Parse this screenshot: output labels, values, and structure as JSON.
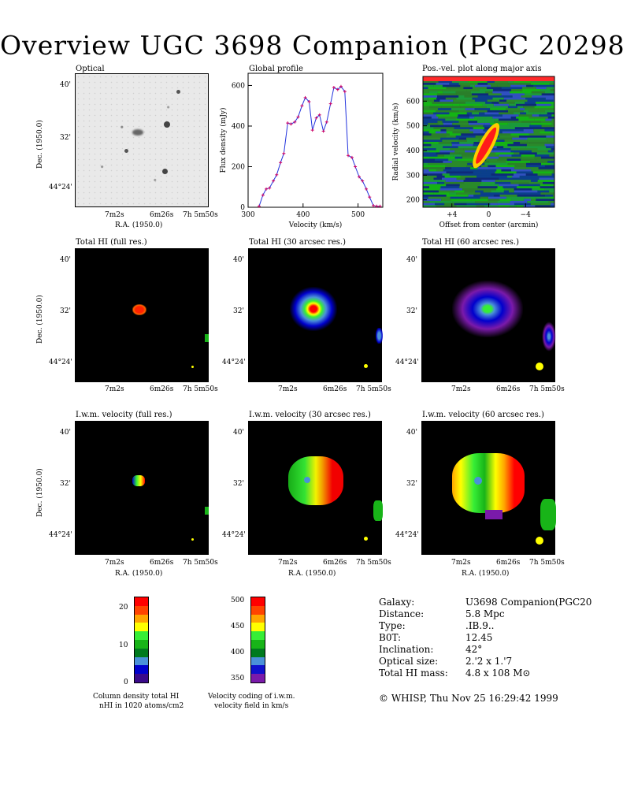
{
  "title": "Overview UGC 3698 Companion (PGC 20298)",
  "panels": {
    "optical": {
      "title": "Optical"
    },
    "global_profile": {
      "title": "Global profile",
      "xlabel": "Velocity (km/s)",
      "ylabel": "Flux density (mJy)"
    },
    "pv": {
      "title": "Pos.-vel. plot along major axis",
      "xlabel": "Offset from center (arcmin)",
      "ylabel": "Radial velocity (km/s)"
    },
    "hi_full": {
      "title": "Total HI (full res.)"
    },
    "hi_30": {
      "title": "Total HI (30 arcsec res.)"
    },
    "hi_60": {
      "title": "Total HI (60 arcsec res.)"
    },
    "vel_full": {
      "title": "I.w.m. velocity (full res.)"
    },
    "vel_30": {
      "title": "I.w.m. velocity (30 arcsec res.)"
    },
    "vel_60": {
      "title": "I.w.m. velocity (60 arcsec res.)"
    }
  },
  "axes": {
    "dec_label": "Dec. (1950.0)",
    "ra_label": "R.A. (1950.0)",
    "dec_ticks": [
      "40'",
      "32'",
      "44°24'"
    ],
    "ra_ticks": [
      "7m2s",
      "6m26s",
      "7h 5m50s"
    ]
  },
  "chart_data": [
    {
      "type": "line",
      "title": "Global profile",
      "xlabel": "Velocity (km/s)",
      "ylabel": "Flux density (mJy)",
      "xlim": [
        300,
        545
      ],
      "ylim": [
        0,
        660
      ],
      "xticks": [
        300,
        400,
        500
      ],
      "yticks": [
        0,
        200,
        400,
        600
      ],
      "x": [
        320,
        327,
        333,
        339,
        346,
        352,
        359,
        365,
        372,
        378,
        385,
        391,
        398,
        404,
        411,
        417,
        424,
        430,
        437,
        443,
        450,
        456,
        463,
        469,
        476,
        482,
        489,
        495,
        502,
        508,
        515,
        521,
        528,
        534,
        540
      ],
      "y": [
        5,
        60,
        90,
        95,
        130,
        160,
        220,
        265,
        415,
        410,
        420,
        445,
        500,
        540,
        520,
        380,
        440,
        455,
        375,
        420,
        510,
        590,
        580,
        595,
        570,
        255,
        245,
        200,
        150,
        130,
        90,
        50,
        8,
        5,
        5
      ]
    },
    {
      "type": "heatmap",
      "title": "Pos.-vel. plot along major axis",
      "xlabel": "Offset from center (arcmin)",
      "ylabel": "Radial velocity (km/s)",
      "xticks": [
        "+4",
        "0",
        "−4"
      ],
      "yticks": [
        200,
        300,
        400,
        500,
        600
      ],
      "ylim": [
        170,
        700
      ]
    }
  ],
  "colorbars": {
    "column_density": {
      "ticks": [
        "0",
        "10",
        "20"
      ],
      "caption_line1": "Column density total HI",
      "caption_line2": "nHI in 1020 atoms/cm2",
      "colors": [
        "#3a0a8a",
        "#0000cc",
        "#4a90d9",
        "#007a1e",
        "#18b418",
        "#36ee36",
        "#ffff00",
        "#ffa500",
        "#ff4400",
        "#ff0000"
      ]
    },
    "velocity": {
      "ticks": [
        "350",
        "400",
        "450",
        "500"
      ],
      "caption_line1": "Velocity coding of i.w.m.",
      "caption_line2": "velocity field in km/s",
      "colors": [
        "#7a1aaa",
        "#1010cc",
        "#4a90d9",
        "#007a1e",
        "#18b418",
        "#36ee36",
        "#ffff00",
        "#ffa500",
        "#ff4400",
        "#ff0000"
      ]
    }
  },
  "info": {
    "rows": [
      {
        "k": "Galaxy:",
        "v": "U3698 Companion(PGC20"
      },
      {
        "k": "Distance:",
        "v": "5.8 Mpc"
      },
      {
        "k": "Type:",
        "v": ".IB.9.."
      },
      {
        "k": "B0T:",
        "v": "12.45"
      },
      {
        "k": "Inclination:",
        "v": "42°"
      },
      {
        "k": "Optical size:",
        "v": "2.'2 x 1.'7"
      },
      {
        "k": "Total HI mass:",
        "v": "4.8 x 108 M⊙"
      }
    ],
    "footer": "© WHISP, Thu Nov 25 16:29:42 1999"
  }
}
